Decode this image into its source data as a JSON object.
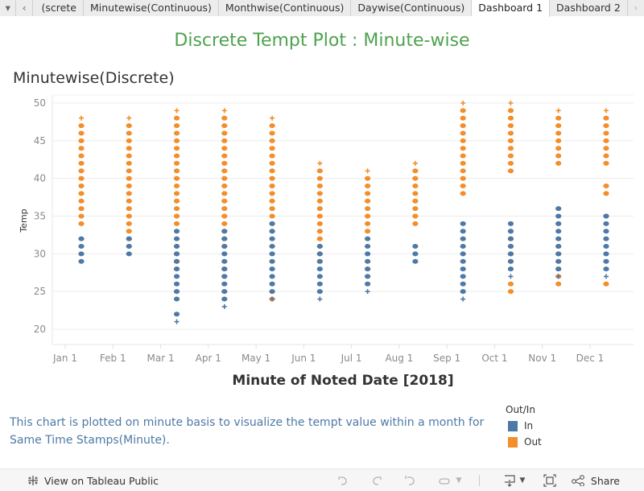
{
  "tabs": {
    "menu_icon": "dropdown-caret-icon",
    "prev_icon": "chevron-left-icon",
    "next_icon": "chevron-right-icon",
    "items": [
      {
        "label": "Minutewise(Discrete)",
        "visible_label": "screte)",
        "active": false
      },
      {
        "label": "Minutewise(Continuous)",
        "active": false
      },
      {
        "label": "Monthwise(Continuous)",
        "active": false
      },
      {
        "label": "Daywise(Continuous)",
        "active": false
      },
      {
        "label": "Dashboard 1",
        "active": true
      },
      {
        "label": "Dashboard 2",
        "active": false
      }
    ]
  },
  "dashboard": {
    "title": "Discrete Tempt Plot : Minute-wise",
    "title_color": "#4ea24e",
    "sheet_title": "Minutewise(Discrete)",
    "caption": "This chart is plotted on minute basis to visualize the tempt value within a month for Same Time Stamps(Minute).",
    "caption_color": "#4e79a7"
  },
  "legend": {
    "title": "Out/In",
    "items": [
      {
        "label": "In",
        "color": "#4e79a7"
      },
      {
        "label": "Out",
        "color": "#f28e2b"
      }
    ]
  },
  "footer": {
    "view_label": "View on Tableau Public",
    "share_label": "Share",
    "icons": [
      "undo-icon",
      "redo-icon",
      "revert-icon",
      "refresh-icon",
      "download-icon",
      "fullscreen-icon",
      "share-icon"
    ]
  },
  "chart_data": {
    "type": "scatter",
    "title": "Minutewise(Discrete)",
    "xlabel": "Minute of Noted Date [2018]",
    "ylabel": "Temp",
    "x_ticks": [
      "Jan 1",
      "Feb 1",
      "Mar 1",
      "Apr 1",
      "May 1",
      "Jun 1",
      "Jul 1",
      "Aug 1",
      "Sep 1",
      "Oct 1",
      "Nov 1",
      "Dec 1"
    ],
    "y_ticks": [
      20,
      25,
      30,
      35,
      40,
      45,
      50
    ],
    "ylim": [
      18,
      51
    ],
    "grid": true,
    "legend_position": "bottom-right",
    "marks": "circle for most points, plus sign for sparse points",
    "series": [
      {
        "name": "Out",
        "color": "#f28e2b",
        "columns": [
          {
            "month": "Jan",
            "values": [
              34,
              35,
              36,
              37,
              38,
              39,
              40,
              41,
              42,
              43,
              44,
              45,
              46,
              47,
              48
            ]
          },
          {
            "month": "Feb",
            "values": [
              31,
              32,
              33,
              34,
              35,
              36,
              37,
              38,
              39,
              40,
              41,
              42,
              43,
              44,
              45,
              46,
              47,
              48
            ]
          },
          {
            "month": "Mar",
            "values": [
              28,
              29,
              30,
              31,
              34,
              35,
              36,
              37,
              38,
              39,
              40,
              41,
              42,
              43,
              44,
              45,
              46,
              47,
              48,
              49
            ]
          },
          {
            "month": "Apr",
            "values": [
              27,
              28,
              31,
              32,
              33,
              34,
              35,
              36,
              37,
              38,
              39,
              40,
              41,
              42,
              43,
              44,
              45,
              46,
              47,
              48,
              49
            ]
          },
          {
            "month": "May",
            "values": [
              24,
              33,
              34,
              35,
              36,
              37,
              38,
              39,
              40,
              41,
              42,
              43,
              44,
              45,
              46,
              47,
              48
            ]
          },
          {
            "month": "Jun",
            "values": [
              29,
              30,
              31,
              32,
              33,
              34,
              35,
              36,
              37,
              38,
              39,
              40,
              41,
              42
            ]
          },
          {
            "month": "Jul",
            "values": [
              27,
              28,
              33,
              34,
              35,
              36,
              37,
              38,
              39,
              40,
              41
            ]
          },
          {
            "month": "Aug",
            "values": [
              34,
              35,
              36,
              37,
              38,
              39,
              40,
              41,
              42
            ]
          },
          {
            "month": "Sep",
            "values": [
              38,
              39,
              40,
              41,
              42,
              43,
              44,
              45,
              46,
              47,
              48,
              49,
              50
            ]
          },
          {
            "month": "Oct",
            "values": [
              25,
              26,
              29,
              30,
              31,
              32,
              33,
              41,
              42,
              43,
              44,
              45,
              46,
              47,
              48,
              49,
              50
            ]
          },
          {
            "month": "Nov",
            "values": [
              26,
              27,
              28,
              29,
              30,
              31,
              34,
              42,
              43,
              44,
              45,
              46,
              47,
              48,
              49
            ]
          },
          {
            "month": "Dec",
            "values": [
              26,
              35,
              38,
              39,
              42,
              43,
              44,
              45,
              46,
              47,
              48,
              49
            ]
          }
        ]
      },
      {
        "name": "In",
        "color": "#4e79a7",
        "columns": [
          {
            "month": "Jan",
            "values": [
              29,
              30,
              31,
              32
            ]
          },
          {
            "month": "Feb",
            "values": [
              30,
              31,
              32
            ]
          },
          {
            "month": "Mar",
            "values": [
              21,
              22,
              24,
              25,
              26,
              27,
              28,
              29,
              30,
              31,
              32,
              33
            ]
          },
          {
            "month": "Apr",
            "values": [
              23,
              24,
              25,
              26,
              27,
              28,
              29,
              30,
              31,
              32,
              33
            ]
          },
          {
            "month": "May",
            "values": [
              24,
              25,
              26,
              27,
              28,
              29,
              30,
              31,
              32,
              33,
              34
            ]
          },
          {
            "month": "Jun",
            "values": [
              24,
              25,
              26,
              27,
              28,
              29,
              30,
              31
            ]
          },
          {
            "month": "Jul",
            "values": [
              25,
              26,
              27,
              28,
              29,
              30,
              31,
              32
            ]
          },
          {
            "month": "Aug",
            "values": [
              29,
              30,
              31
            ]
          },
          {
            "month": "Sep",
            "values": [
              24,
              25,
              26,
              27,
              28,
              29,
              30,
              31,
              32,
              33,
              34
            ]
          },
          {
            "month": "Oct",
            "values": [
              27,
              28,
              29,
              30,
              31,
              32,
              33,
              34
            ]
          },
          {
            "month": "Nov",
            "values": [
              27,
              28,
              29,
              30,
              31,
              32,
              33,
              34,
              35,
              36
            ]
          },
          {
            "month": "Dec",
            "values": [
              27,
              28,
              29,
              30,
              31,
              32,
              33,
              34,
              35
            ]
          }
        ]
      }
    ]
  }
}
